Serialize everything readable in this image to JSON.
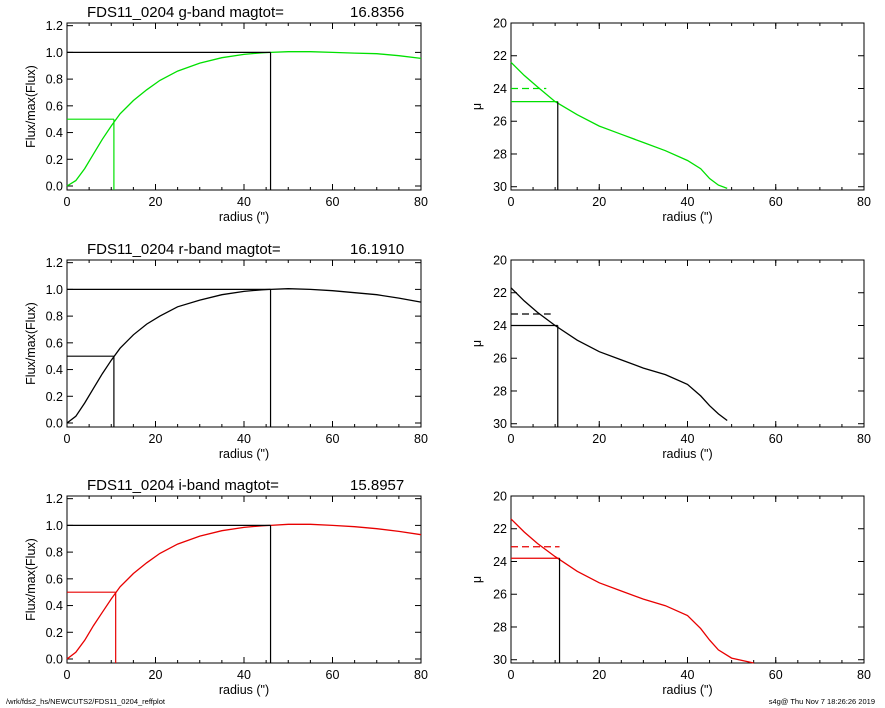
{
  "chart_data": [
    {
      "type": "line",
      "title": "FDS11_0204 g-band  magtot=",
      "magtot": "16.8356",
      "xlabel": "radius (\")",
      "ylabel": "Flux/max(Flux)",
      "xlim": [
        0,
        80
      ],
      "ylim": [
        -0.03,
        1.22
      ],
      "xticks": [
        "0",
        "20",
        "40",
        "60",
        "80"
      ],
      "yticks": [
        "0.0",
        "0.2",
        "0.4",
        "0.6",
        "0.8",
        "1.0",
        "1.2"
      ],
      "color": "#00e000",
      "x": [
        0,
        2,
        4,
        6,
        8,
        10,
        12,
        15,
        18,
        21,
        25,
        30,
        35,
        40,
        44,
        46,
        50,
        55,
        60,
        65,
        70,
        75,
        80
      ],
      "series": [
        {
          "values": [
            0.0,
            0.04,
            0.13,
            0.24,
            0.35,
            0.45,
            0.54,
            0.64,
            0.72,
            0.79,
            0.86,
            0.92,
            0.96,
            0.985,
            0.997,
            1.0,
            1.005,
            1.005,
            1.0,
            0.995,
            0.99,
            0.975,
            0.955
          ]
        }
      ],
      "half_light": {
        "x": 10.6,
        "y": 0.5
      },
      "total": {
        "x": 46,
        "y": 1.0
      }
    },
    {
      "type": "line",
      "xlabel": "radius (\")",
      "ylabel": "μ",
      "xlim": [
        0,
        80
      ],
      "ylim": [
        30.2,
        20
      ],
      "xticks": [
        "0",
        "20",
        "40",
        "60",
        "80"
      ],
      "yticks": [
        "20",
        "22",
        "24",
        "26",
        "28",
        "30"
      ],
      "color": "#00e000",
      "x": [
        0,
        3,
        6,
        10,
        15,
        20,
        25,
        30,
        35,
        40,
        43,
        45,
        47,
        49
      ],
      "series": [
        {
          "values": [
            22.4,
            23.2,
            23.9,
            24.8,
            25.6,
            26.3,
            26.8,
            27.3,
            27.8,
            28.4,
            28.9,
            29.5,
            29.9,
            30.1
          ]
        }
      ],
      "dashed_level": {
        "x": [
          0,
          8
        ],
        "y": 24.0
      },
      "reff": {
        "x": 10.6,
        "y": 24.8
      }
    },
    {
      "type": "line",
      "title": "FDS11_0204 r-band  magtot=",
      "magtot": "16.1910",
      "xlabel": "radius (\")",
      "ylabel": "Flux/max(Flux)",
      "xlim": [
        0,
        80
      ],
      "ylim": [
        -0.03,
        1.22
      ],
      "xticks": [
        "0",
        "20",
        "40",
        "60",
        "80"
      ],
      "yticks": [
        "0.0",
        "0.2",
        "0.4",
        "0.6",
        "0.8",
        "1.0",
        "1.2"
      ],
      "color": "#000000",
      "x": [
        0,
        2,
        4,
        6,
        8,
        10,
        12,
        15,
        18,
        21,
        25,
        30,
        35,
        40,
        44,
        46,
        50,
        55,
        60,
        65,
        70,
        75,
        80
      ],
      "series": [
        {
          "values": [
            0.0,
            0.05,
            0.15,
            0.26,
            0.37,
            0.47,
            0.56,
            0.66,
            0.74,
            0.8,
            0.87,
            0.92,
            0.96,
            0.985,
            0.997,
            1.0,
            1.005,
            1.0,
            0.99,
            0.975,
            0.96,
            0.935,
            0.905
          ]
        }
      ],
      "half_light": {
        "x": 10.6,
        "y": 0.5
      },
      "total": {
        "x": 46,
        "y": 1.0
      }
    },
    {
      "type": "line",
      "xlabel": "radius (\")",
      "ylabel": "μ",
      "xlim": [
        0,
        80
      ],
      "ylim": [
        30.2,
        20
      ],
      "xticks": [
        "0",
        "20",
        "40",
        "60",
        "80"
      ],
      "yticks": [
        "20",
        "22",
        "24",
        "26",
        "28",
        "30"
      ],
      "color": "#000000",
      "x": [
        0,
        3,
        6,
        10,
        15,
        20,
        25,
        30,
        35,
        40,
        43,
        45,
        47,
        49
      ],
      "series": [
        {
          "values": [
            21.7,
            22.5,
            23.2,
            24.0,
            24.9,
            25.6,
            26.1,
            26.6,
            27.0,
            27.6,
            28.3,
            28.9,
            29.4,
            29.8
          ]
        }
      ],
      "dashed_level": {
        "x": [
          0,
          9
        ],
        "y": 23.3
      },
      "reff": {
        "x": 10.6,
        "y": 24.0
      }
    },
    {
      "type": "line",
      "title": "FDS11_0204 i-band  magtot=",
      "magtot": "15.8957",
      "xlabel": "radius (\")",
      "ylabel": "Flux/max(Flux)",
      "xlim": [
        0,
        80
      ],
      "ylim": [
        -0.03,
        1.22
      ],
      "xticks": [
        "0",
        "20",
        "40",
        "60",
        "80"
      ],
      "yticks": [
        "0.0",
        "0.2",
        "0.4",
        "0.6",
        "0.8",
        "1.0",
        "1.2"
      ],
      "color": "#e80000",
      "x": [
        0,
        2,
        4,
        6,
        8,
        10,
        12,
        15,
        18,
        21,
        25,
        30,
        35,
        40,
        44,
        46,
        50,
        55,
        60,
        65,
        70,
        75,
        80
      ],
      "series": [
        {
          "values": [
            0.0,
            0.05,
            0.14,
            0.25,
            0.35,
            0.45,
            0.54,
            0.64,
            0.72,
            0.79,
            0.86,
            0.92,
            0.96,
            0.985,
            0.997,
            1.0,
            1.008,
            1.008,
            1.0,
            0.99,
            0.975,
            0.955,
            0.93
          ]
        }
      ],
      "half_light": {
        "x": 11.0,
        "y": 0.5
      },
      "total": {
        "x": 46,
        "y": 1.0
      }
    },
    {
      "type": "line",
      "xlabel": "radius (\")",
      "ylabel": "μ",
      "xlim": [
        0,
        80
      ],
      "ylim": [
        30.2,
        20
      ],
      "xticks": [
        "0",
        "20",
        "40",
        "60",
        "80"
      ],
      "yticks": [
        "20",
        "22",
        "24",
        "26",
        "28",
        "30"
      ],
      "color": "#e80000",
      "x": [
        0,
        3,
        6,
        10,
        15,
        20,
        25,
        30,
        35,
        40,
        43,
        45,
        47,
        50,
        55
      ],
      "series": [
        {
          "values": [
            21.4,
            22.2,
            22.9,
            23.7,
            24.6,
            25.3,
            25.8,
            26.3,
            26.7,
            27.3,
            28.1,
            28.8,
            29.4,
            29.9,
            30.2
          ]
        }
      ],
      "dashed_level": {
        "x": [
          0,
          11
        ],
        "y": 23.1
      },
      "reff": {
        "x": 11.0,
        "y": 23.8
      }
    }
  ],
  "footer": {
    "left": "/wrk/fds2_hs/NEWCUTS2/FDS11_0204_reffplot",
    "right": "s4g@  Thu Nov  7 18:26:26 2019"
  }
}
